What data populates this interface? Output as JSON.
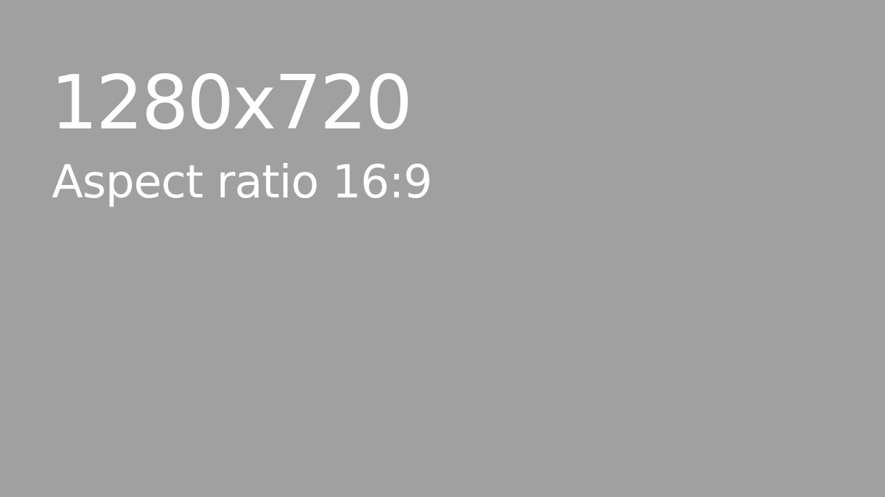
{
  "placeholder": {
    "dimensions_text": "1280x720",
    "aspect_text": "Aspect ratio 16:9",
    "background_color": "#a0a0a0",
    "text_color": "#ffffff"
  }
}
